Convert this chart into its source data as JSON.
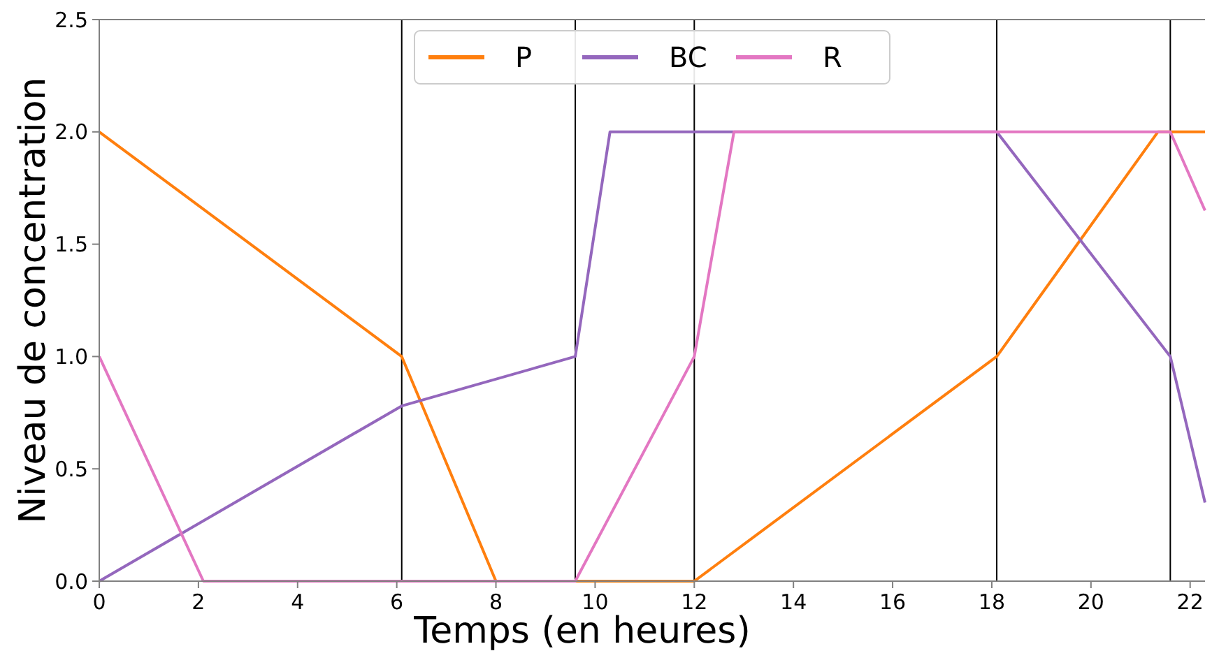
{
  "chart_data": {
    "type": "line",
    "xlabel": "Temps (en heures)",
    "ylabel": "Niveau de concentration",
    "xlim": [
      0,
      22.3
    ],
    "ylim": [
      0,
      2.5
    ],
    "xticks": [
      0,
      2,
      4,
      6,
      8,
      10,
      12,
      14,
      16,
      18,
      20,
      22
    ],
    "yticks": [
      {
        "value": 0,
        "label": "0.0"
      },
      {
        "value": 0.5,
        "label": "0.5"
      },
      {
        "value": 1,
        "label": "1.0"
      },
      {
        "value": 1.5,
        "label": "1.5"
      },
      {
        "value": 2,
        "label": "2.0"
      },
      {
        "value": 2.5,
        "label": "2.5"
      }
    ],
    "grid": false,
    "legend": "top",
    "marker": "none",
    "line_style": "solid",
    "series": [
      {
        "name": "P",
        "color": "#ff7f0e",
        "x": [
          0,
          6.1,
          8,
          9.6,
          12,
          18.1,
          21.35,
          21.6,
          22.3
        ],
        "values": [
          2,
          1,
          0,
          0,
          0,
          1,
          2,
          2,
          2
        ]
      },
      {
        "name": "BC",
        "color": "#9467bd",
        "x": [
          0,
          6.1,
          9.6,
          10.3,
          12,
          18.1,
          21.6,
          22.3
        ],
        "values": [
          0,
          0.78,
          1,
          2,
          2,
          2,
          1,
          0.35
        ]
      },
      {
        "name": "R",
        "color": "#e377c2",
        "x": [
          0,
          2.1,
          9.6,
          12,
          12.8,
          18.1,
          21.6,
          22.3
        ],
        "values": [
          1,
          0,
          0,
          1,
          2,
          2,
          2,
          1.65
        ]
      }
    ],
    "ref_lines": [
      {
        "axis": "x",
        "value": 6.1,
        "color": "#000000"
      },
      {
        "axis": "x",
        "value": 9.6,
        "color": "#000000"
      },
      {
        "axis": "x",
        "value": 12,
        "color": "#000000"
      },
      {
        "axis": "x",
        "value": 18.1,
        "color": "#000000"
      },
      {
        "axis": "x",
        "value": 21.6,
        "color": "#000000"
      }
    ]
  }
}
